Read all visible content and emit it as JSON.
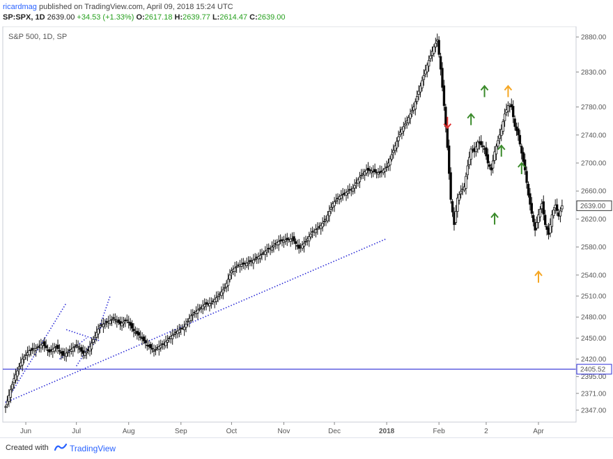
{
  "header": {
    "author": "ricardmag",
    "published_text": "published on TradingView.com, April 09, 2018 15:24 UTC",
    "symbol_line": "SP:SPX, 1D",
    "last": "2639.00",
    "change": "+34.53 (+1.33%)",
    "o_label": "O:",
    "o_value": "2617.18",
    "h_label": "H:",
    "h_value": "2639.77",
    "l_label": "L:",
    "l_value": "2614.47",
    "c_label": "C:",
    "c_value": "2639.00"
  },
  "footer": {
    "created_with": "Created with",
    "brand": "TradingView"
  },
  "colors": {
    "up_candle": "#ffffff",
    "down_candle": "#000000",
    "trendline": "#2b2bd6",
    "arrow_up_green": "#3a8a2a",
    "arrow_up_orange": "#f5a623",
    "arrow_down_red": "#e03030"
  },
  "chart_data": {
    "type": "candlestick",
    "title": "S&P 500, 1D, SP",
    "ylim": [
      2330,
      2895
    ],
    "y_ticks": [
      2347,
      2371,
      2395,
      2420,
      2450,
      2480,
      2510,
      2540,
      2580,
      2620,
      2660,
      2700,
      2740,
      2780,
      2830,
      2880
    ],
    "y_tick_labels": [
      "2347.00",
      "2371.00",
      "2395.00",
      "2420.00",
      "2450.00",
      "2480.00",
      "2510.00",
      "2540.00",
      "2580.00",
      "2620.00",
      "2660.00",
      "2700.00",
      "2740.00",
      "2780.00",
      "2830.00",
      "2880.00"
    ],
    "price_markers": [
      {
        "label": "2639.00",
        "value": 2639.0,
        "style": "last"
      },
      {
        "label": "2405.52",
        "value": 2405.52,
        "style": "level"
      }
    ],
    "x_labels": [
      {
        "label": "Jun",
        "day": 12
      },
      {
        "label": "Jul",
        "day": 42
      },
      {
        "label": "Aug",
        "day": 73
      },
      {
        "label": "Sep",
        "day": 104
      },
      {
        "label": "Oct",
        "day": 134
      },
      {
        "label": "Nov",
        "day": 165
      },
      {
        "label": "Dec",
        "day": 195
      },
      {
        "label": "2018",
        "day": 226
      },
      {
        "label": "Feb",
        "day": 257
      },
      {
        "label": "2",
        "day": 285
      },
      {
        "label": "Apr",
        "day": 316
      }
    ],
    "price_path": [
      [
        0,
        2352
      ],
      [
        5,
        2392
      ],
      [
        10,
        2420
      ],
      [
        14,
        2432
      ],
      [
        18,
        2435
      ],
      [
        22,
        2442
      ],
      [
        26,
        2430
      ],
      [
        30,
        2438
      ],
      [
        34,
        2425
      ],
      [
        38,
        2432
      ],
      [
        42,
        2440
      ],
      [
        46,
        2428
      ],
      [
        49,
        2432
      ],
      [
        52,
        2448
      ],
      [
        56,
        2468
      ],
      [
        60,
        2472
      ],
      [
        64,
        2478
      ],
      [
        68,
        2470
      ],
      [
        72,
        2476
      ],
      [
        76,
        2460
      ],
      [
        80,
        2452
      ],
      [
        84,
        2440
      ],
      [
        88,
        2432
      ],
      [
        91,
        2438
      ],
      [
        94,
        2442
      ],
      [
        98,
        2452
      ],
      [
        102,
        2460
      ],
      [
        106,
        2466
      ],
      [
        110,
        2482
      ],
      [
        114,
        2490
      ],
      [
        118,
        2498
      ],
      [
        122,
        2500
      ],
      [
        126,
        2510
      ],
      [
        130,
        2522
      ],
      [
        134,
        2546
      ],
      [
        138,
        2554
      ],
      [
        142,
        2556
      ],
      [
        146,
        2560
      ],
      [
        150,
        2566
      ],
      [
        154,
        2574
      ],
      [
        158,
        2580
      ],
      [
        162,
        2588
      ],
      [
        166,
        2590
      ],
      [
        170,
        2592
      ],
      [
        174,
        2578
      ],
      [
        178,
        2588
      ],
      [
        182,
        2602
      ],
      [
        186,
        2608
      ],
      [
        190,
        2620
      ],
      [
        194,
        2642
      ],
      [
        198,
        2652
      ],
      [
        202,
        2658
      ],
      [
        206,
        2664
      ],
      [
        210,
        2680
      ],
      [
        214,
        2690
      ],
      [
        218,
        2688
      ],
      [
        222,
        2686
      ],
      [
        226,
        2694
      ],
      [
        230,
        2718
      ],
      [
        234,
        2744
      ],
      [
        238,
        2760
      ],
      [
        242,
        2780
      ],
      [
        246,
        2810
      ],
      [
        250,
        2840
      ],
      [
        254,
        2866
      ],
      [
        256,
        2876
      ],
      [
        258,
        2834
      ],
      [
        260,
        2782
      ],
      [
        262,
        2722
      ],
      [
        264,
        2648
      ],
      [
        266,
        2612
      ],
      [
        268,
        2650
      ],
      [
        270,
        2660
      ],
      [
        272,
        2666
      ],
      [
        274,
        2696
      ],
      [
        276,
        2720
      ],
      [
        278,
        2716
      ],
      [
        280,
        2730
      ],
      [
        282,
        2726
      ],
      [
        284,
        2720
      ],
      [
        286,
        2700
      ],
      [
        288,
        2690
      ],
      [
        290,
        2716
      ],
      [
        292,
        2732
      ],
      [
        294,
        2748
      ],
      [
        296,
        2770
      ],
      [
        298,
        2782
      ],
      [
        300,
        2780
      ],
      [
        302,
        2752
      ],
      [
        304,
        2740
      ],
      [
        306,
        2714
      ],
      [
        308,
        2690
      ],
      [
        310,
        2654
      ],
      [
        312,
        2628
      ],
      [
        314,
        2604
      ],
      [
        316,
        2626
      ],
      [
        318,
        2642
      ],
      [
        320,
        2612
      ],
      [
        322,
        2598
      ],
      [
        324,
        2626
      ],
      [
        326,
        2640
      ],
      [
        328,
        2624
      ],
      [
        330,
        2639
      ]
    ],
    "trendlines": [
      {
        "from": [
          0,
          2358
        ],
        "to": [
          226,
          2592
        ]
      },
      {
        "from": [
          0,
          2358
        ],
        "to": [
          36,
          2500
        ]
      },
      {
        "from": [
          32,
          2420
        ],
        "to": [
          48,
          2450
        ]
      },
      {
        "from": [
          36,
          2462
        ],
        "to": [
          56,
          2446
        ]
      },
      {
        "from": [
          42,
          2410
        ],
        "to": [
          60,
          2478
        ]
      },
      {
        "from": [
          52,
          2440
        ],
        "to": [
          62,
          2510
        ]
      }
    ],
    "annotations": [
      {
        "type": "arrow-down",
        "color": "red",
        "day": 262,
        "value": 2750
      },
      {
        "type": "arrow-up",
        "color": "green",
        "day": 276,
        "value": 2770
      },
      {
        "type": "arrow-up",
        "color": "green",
        "day": 284,
        "value": 2810
      },
      {
        "type": "arrow-up",
        "color": "green",
        "day": 290,
        "value": 2628
      },
      {
        "type": "arrow-up",
        "color": "green",
        "day": 294,
        "value": 2725
      },
      {
        "type": "arrow-up",
        "color": "orange",
        "day": 298,
        "value": 2810
      },
      {
        "type": "arrow-up",
        "color": "green",
        "day": 306,
        "value": 2700
      },
      {
        "type": "arrow-up",
        "color": "orange",
        "day": 316,
        "value": 2545
      }
    ]
  }
}
